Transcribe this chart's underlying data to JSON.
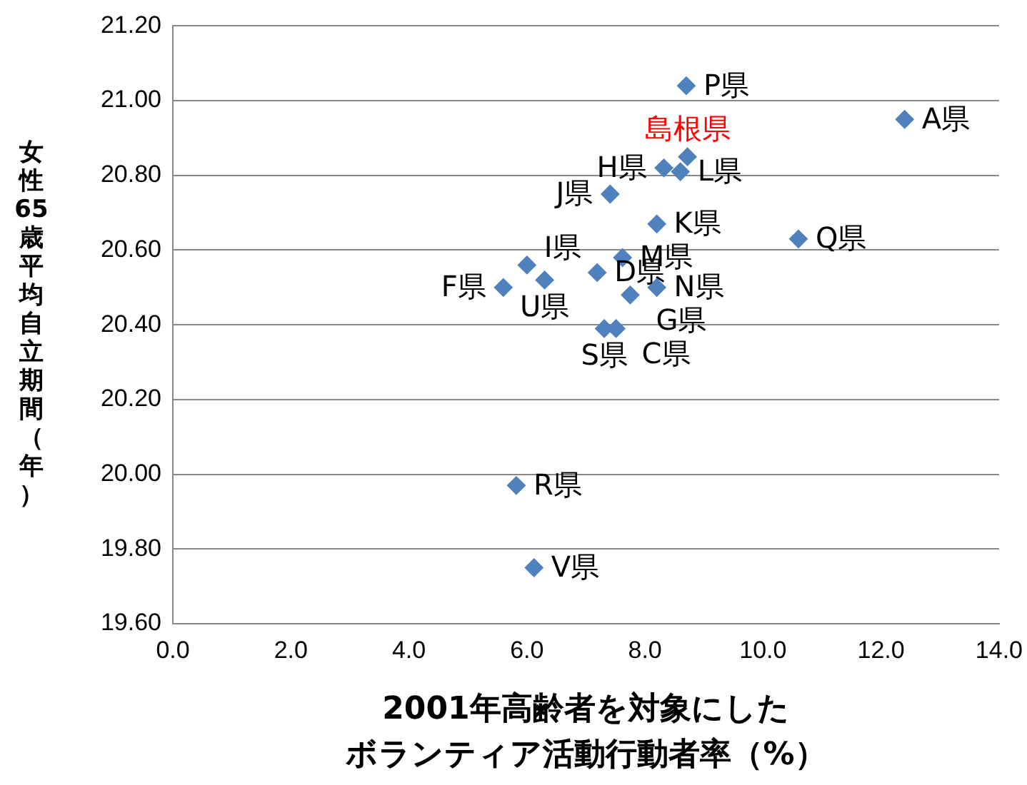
{
  "chart_data": {
    "type": "scatter",
    "xlabel": "2001年高齢者を対象にしたボランティア活動行動者率（%）",
    "ylabel": "女性65歳平均自立期間（年）",
    "series": [
      {
        "color": "#4f81bd",
        "marker": "diamond",
        "x": [
          12.4,
          8.7,
          8.32,
          8.6,
          7.41,
          8.2,
          10.6,
          6.0,
          5.6,
          6.3,
          7.19,
          7.62,
          7.75,
          8.2,
          7.31,
          7.51,
          5.82,
          6.12,
          8.72
        ],
        "values": [
          20.95,
          21.04,
          20.82,
          20.81,
          20.75,
          20.67,
          20.63,
          20.56,
          20.5,
          20.52,
          20.54,
          20.58,
          20.48,
          20.5,
          20.39,
          20.39,
          19.97,
          19.75,
          20.85
        ],
        "value_labels": [
          "A県",
          "P県",
          "H県",
          "L県",
          "J県",
          "K県",
          "Q県",
          "I県",
          "F県",
          "U県",
          "D県",
          "M県",
          "G県",
          "N県",
          "S県",
          "C県",
          "R県",
          "V県",
          null
        ]
      }
    ],
    "annotations": [
      {
        "text": "島根県",
        "x": 8.72,
        "y": 20.85
      }
    ],
    "xlim": [
      0,
      14
    ],
    "xticks": [
      {
        "value": 0,
        "label": "0.0"
      },
      {
        "value": 2,
        "label": "2.0"
      },
      {
        "value": 4,
        "label": "4.0"
      },
      {
        "value": 6,
        "label": "6.0"
      },
      {
        "value": 8,
        "label": "8.0"
      },
      {
        "value": 10,
        "label": "10.0"
      },
      {
        "value": 12,
        "label": "12.0"
      },
      {
        "value": 14,
        "label": "14.0"
      }
    ],
    "ylim": [
      19.6,
      21.2
    ],
    "yticks": [
      {
        "value": 19.6,
        "label": "19.60"
      },
      {
        "value": 19.8,
        "label": "19.80"
      },
      {
        "value": 20,
        "label": "20.00"
      },
      {
        "value": 20.2,
        "label": "20.20"
      },
      {
        "value": 20.4,
        "label": "20.40"
      },
      {
        "value": 20.6,
        "label": "20.60"
      },
      {
        "value": 20.8,
        "label": "20.80"
      },
      {
        "value": 21,
        "label": "21.00"
      },
      {
        "value": 21.2,
        "label": "21.20"
      }
    ],
    "grid": "y",
    "legend": false
  }
}
